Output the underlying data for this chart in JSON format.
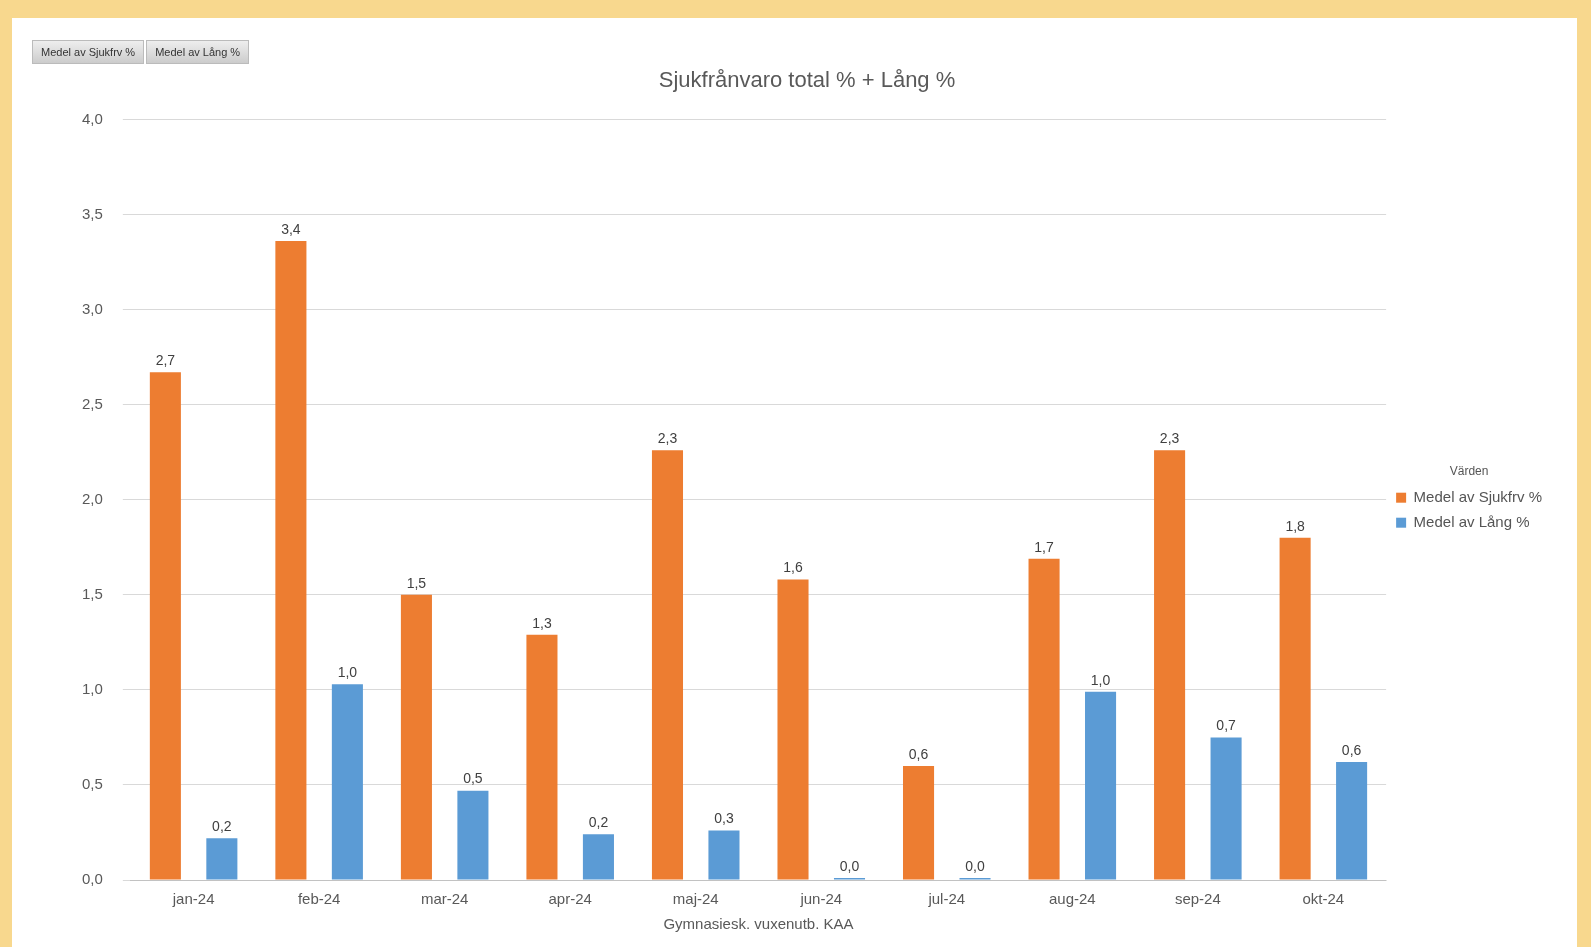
{
  "chart_data": {
    "type": "bar",
    "title": "Sjukfrånvaro total % + Lång %",
    "xlabel": "Gymnasiesk. vuxenutb. KAA",
    "legend_title": "Värden",
    "legend": "right",
    "annotations": [
      "Medel av Sjukfrv %",
      "Medel av Lång %"
    ],
    "categories": [
      "jan-24",
      "feb-24",
      "mar-24",
      "apr-24",
      "maj-24",
      "jun-24",
      "jul-24",
      "aug-24",
      "sep-24",
      "okt-24"
    ],
    "series": [
      {
        "name": "Medel av Sjukfrv %",
        "color": "#ed7d31",
        "values": [
          2.67,
          3.36,
          1.5,
          1.29,
          2.26,
          1.58,
          0.6,
          1.69,
          2.26,
          1.8
        ],
        "value_labels": [
          "2,7",
          "3,4",
          "1,5",
          "1,3",
          "2,3",
          "1,6",
          "0,6",
          "1,7",
          "2,3",
          "1,8"
        ]
      },
      {
        "name": "Medel av Lång %",
        "color": "#5b9bd5",
        "values": [
          0.22,
          1.03,
          0.47,
          0.24,
          0.26,
          0,
          0,
          0.99,
          0.75,
          0.62
        ],
        "value_labels": [
          "0,2",
          "1,0",
          "0,5",
          "0,2",
          "0,3",
          "0,0",
          "0,0",
          "1,0",
          "0,7",
          "0,6"
        ]
      }
    ],
    "ylim": [
      0,
      4
    ],
    "yticks": [
      {
        "value": 0,
        "label": "0,0"
      },
      {
        "value": 0.5,
        "label": "0,5"
      },
      {
        "value": 1,
        "label": "1,0"
      },
      {
        "value": 1.5,
        "label": "1,5"
      },
      {
        "value": 2,
        "label": "2,0"
      },
      {
        "value": 2.5,
        "label": "2,5"
      },
      {
        "value": 3,
        "label": "3,0"
      },
      {
        "value": 3.5,
        "label": "3,5"
      },
      {
        "value": 4,
        "label": "4,0"
      }
    ],
    "grid": "y"
  }
}
